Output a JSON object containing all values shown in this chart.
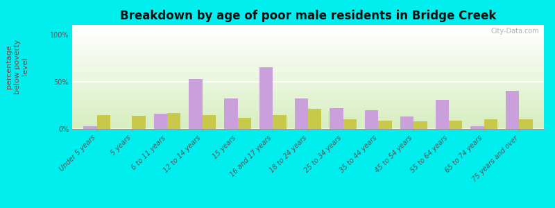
{
  "title": "Breakdown by age of poor male residents in Bridge Creek",
  "ylabel": "percentage\nbelow poverty\nlevel",
  "categories": [
    "Under 5 years",
    "5 years",
    "6 to 11 years",
    "12 to 14 years",
    "15 years",
    "16 and 17 years",
    "18 to 24 years",
    "25 to 34 years",
    "35 to 44 years",
    "45 to 54 years",
    "55 to 64 years",
    "65 to 74 years",
    "75 years and over"
  ],
  "bridge_creek": [
    3,
    0,
    16,
    53,
    32,
    65,
    32,
    22,
    20,
    13,
    31,
    3,
    40
  ],
  "wisconsin": [
    15,
    14,
    17,
    15,
    12,
    15,
    21,
    10,
    9,
    8,
    9,
    10,
    10
  ],
  "bridge_creek_color": "#c9a0dc",
  "wisconsin_color": "#c8c84a",
  "bg_top_color": "#ffffff",
  "bg_bottom_color": "#d8edc0",
  "outer_bg": "#00eeee",
  "yticks": [
    0,
    50,
    100
  ],
  "ytick_labels": [
    "0%",
    "50%",
    "100%"
  ],
  "ylim": [
    0,
    110
  ],
  "bar_width": 0.38,
  "title_fontsize": 12,
  "ylabel_fontsize": 8,
  "tick_fontsize": 7,
  "legend_fontsize": 9,
  "watermark": "City-Data.com",
  "watermark_color": "#aaaaaa",
  "label_color": "#555555",
  "ylabel_color": "#774444"
}
